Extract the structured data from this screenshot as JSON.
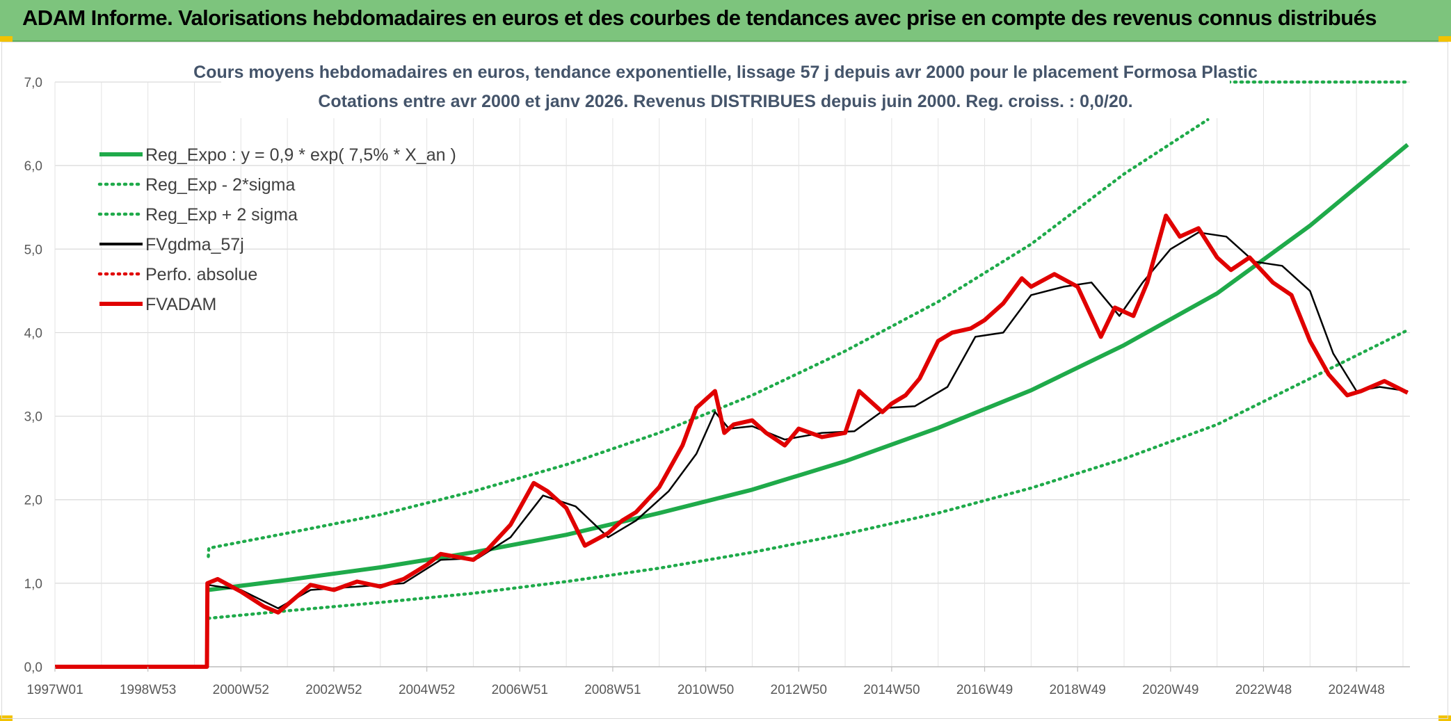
{
  "header": {
    "title": "ADAM Informe. Valorisations hebdomadaires en euros et des courbes de tendances avec prise en compte des revenus connus distribués"
  },
  "colors": {
    "header_bg": "#7dc47d",
    "reg_expo": "#1faa4a",
    "sigma": "#1faa4a",
    "fvgdma": "#000000",
    "perfo": "#e00000",
    "fvadam": "#e00000"
  },
  "chart_data": {
    "type": "line",
    "title_lines": [
      "Cours moyens hebdomadaires en euros, tendance exponentielle, lissage 57 j depuis avr 2000 pour le placement Formosa Plastic",
      "Cotations entre avr 2000 et janv 2026. Revenus DISTRIBUES depuis juin 2000. Reg. croiss. : 0,0/20."
    ],
    "y_axis": {
      "min": 0,
      "max": 7,
      "ticks": [
        "0,0",
        "1,0",
        "2,0",
        "3,0",
        "4,0",
        "5,0",
        "6,0",
        "7,0"
      ]
    },
    "x_axis": {
      "min": 1997.0,
      "max": 2026.15,
      "ticks": [
        {
          "label": "1997W01",
          "x": 1997.0
        },
        {
          "label": "1998W53",
          "x": 1999.0
        },
        {
          "label": "2000W52",
          "x": 2001.0
        },
        {
          "label": "2002W52",
          "x": 2003.0
        },
        {
          "label": "2004W52",
          "x": 2005.0
        },
        {
          "label": "2006W51",
          "x": 2007.0
        },
        {
          "label": "2008W51",
          "x": 2009.0
        },
        {
          "label": "2010W50",
          "x": 2011.0
        },
        {
          "label": "2012W50",
          "x": 2013.0
        },
        {
          "label": "2014W50",
          "x": 2015.0
        },
        {
          "label": "2016W49",
          "x": 2017.0
        },
        {
          "label": "2018W49",
          "x": 2019.0
        },
        {
          "label": "2020W49",
          "x": 2021.0
        },
        {
          "label": "2022W48",
          "x": 2023.0
        },
        {
          "label": "2024W48",
          "x": 2025.0
        }
      ]
    },
    "legend": [
      {
        "name": "Reg_Expo : y = 0,9 * exp( 7,5% *  X_an )",
        "style": "solid-thick",
        "color": "#1faa4a"
      },
      {
        "name": "Reg_Exp - 2*sigma",
        "style": "dotted",
        "color": "#1faa4a"
      },
      {
        "name": "Reg_Exp + 2 sigma",
        "style": "dotted",
        "color": "#1faa4a"
      },
      {
        "name": "FVgdma_57j",
        "style": "solid",
        "color": "#000000"
      },
      {
        "name": "Perfo. absolue",
        "style": "dotted",
        "color": "#e00000"
      },
      {
        "name": "FVADAM",
        "style": "solid-thick",
        "color": "#e00000"
      }
    ],
    "series": [
      {
        "name": "Reg_Expo : y = 0,9 * exp( 7,5% *  X_an )",
        "x": [
          2000.3,
          2002,
          2004,
          2006,
          2008,
          2010,
          2012,
          2014,
          2016,
          2018,
          2020,
          2022,
          2024,
          2026.1
        ],
        "y": [
          0.92,
          1.04,
          1.19,
          1.37,
          1.58,
          1.84,
          2.12,
          2.46,
          2.86,
          3.31,
          3.85,
          4.47,
          5.28,
          6.25
        ]
      },
      {
        "name": "Reg_Exp - 2*sigma",
        "x": [
          2000.3,
          2002,
          2004,
          2006,
          2008,
          2010,
          2012,
          2014,
          2016,
          2018,
          2020,
          2022,
          2024,
          2026.1
        ],
        "y": [
          0.58,
          0.67,
          0.77,
          0.88,
          1.02,
          1.18,
          1.37,
          1.59,
          1.84,
          2.14,
          2.49,
          2.9,
          3.45,
          4.03
        ]
      },
      {
        "name": "Reg_Exp + 2 sigma",
        "x": [
          2000.3,
          2000.31,
          2002,
          2004,
          2006,
          2008,
          2010,
          2012,
          2014,
          2016,
          2018,
          2020,
          2021.8
        ],
        "y": [
          1.32,
          1.42,
          1.6,
          1.82,
          2.1,
          2.42,
          2.8,
          3.25,
          3.78,
          4.37,
          5.06,
          5.9,
          6.55
        ]
      },
      {
        "name": "FVgdma_57j",
        "x": [
          2000.3,
          2001,
          2001.8,
          2002.5,
          2003.5,
          2004.5,
          2005.3,
          2006.1,
          2006.8,
          2007.5,
          2008.2,
          2008.9,
          2009.5,
          2010.2,
          2010.8,
          2011.2,
          2011.5,
          2012,
          2012.7,
          2013.5,
          2014.2,
          2014.9,
          2015.5,
          2016.2,
          2016.8,
          2017.4,
          2018,
          2018.7,
          2019.3,
          2019.9,
          2020.4,
          2021,
          2021.6,
          2022.2,
          2022.8,
          2023.4,
          2024,
          2024.5,
          2025,
          2025.5,
          2026.1
        ],
        "y": [
          0.98,
          0.92,
          0.7,
          0.92,
          0.96,
          1.0,
          1.28,
          1.3,
          1.55,
          2.05,
          1.92,
          1.55,
          1.75,
          2.1,
          2.55,
          3.05,
          2.85,
          2.88,
          2.72,
          2.8,
          2.82,
          3.1,
          3.12,
          3.35,
          3.95,
          4.0,
          4.45,
          4.55,
          4.6,
          4.2,
          4.6,
          5.0,
          5.2,
          5.15,
          4.85,
          4.8,
          4.5,
          3.75,
          3.3,
          3.35,
          3.3
        ]
      },
      {
        "name": "FVADAM",
        "x": [
          1997.0,
          2000.27,
          2000.28,
          2000.5,
          2001,
          2001.5,
          2001.8,
          2002.5,
          2003,
          2003.5,
          2004,
          2004.5,
          2005,
          2005.3,
          2006,
          2006.3,
          2006.8,
          2007.3,
          2007.6,
          2008,
          2008.4,
          2008.9,
          2009.2,
          2009.5,
          2010,
          2010.5,
          2010.8,
          2011.2,
          2011.4,
          2011.6,
          2012,
          2012.3,
          2012.7,
          2013,
          2013.5,
          2014,
          2014.3,
          2014.8,
          2015,
          2015.3,
          2015.6,
          2016,
          2016.3,
          2016.7,
          2017,
          2017.4,
          2017.8,
          2018,
          2018.5,
          2019,
          2019.5,
          2019.8,
          2020.2,
          2020.5,
          2020.9,
          2021.2,
          2021.6,
          2022,
          2022.3,
          2022.7,
          2023.2,
          2023.6,
          2024,
          2024.4,
          2024.8,
          2025.1,
          2025.6,
          2026.1
        ],
        "y": [
          0.0,
          0.0,
          1.0,
          1.05,
          0.9,
          0.72,
          0.65,
          0.98,
          0.92,
          1.02,
          0.96,
          1.05,
          1.22,
          1.35,
          1.28,
          1.4,
          1.7,
          2.2,
          2.1,
          1.9,
          1.45,
          1.6,
          1.75,
          1.85,
          2.15,
          2.65,
          3.1,
          3.3,
          2.8,
          2.9,
          2.95,
          2.8,
          2.65,
          2.85,
          2.75,
          2.8,
          3.3,
          3.05,
          3.15,
          3.25,
          3.45,
          3.9,
          4.0,
          4.05,
          4.15,
          4.35,
          4.65,
          4.55,
          4.7,
          4.55,
          3.95,
          4.3,
          4.2,
          4.6,
          5.4,
          5.15,
          5.25,
          4.9,
          4.75,
          4.9,
          4.6,
          4.45,
          3.9,
          3.5,
          3.25,
          3.3,
          3.42,
          3.28
        ]
      }
    ]
  }
}
